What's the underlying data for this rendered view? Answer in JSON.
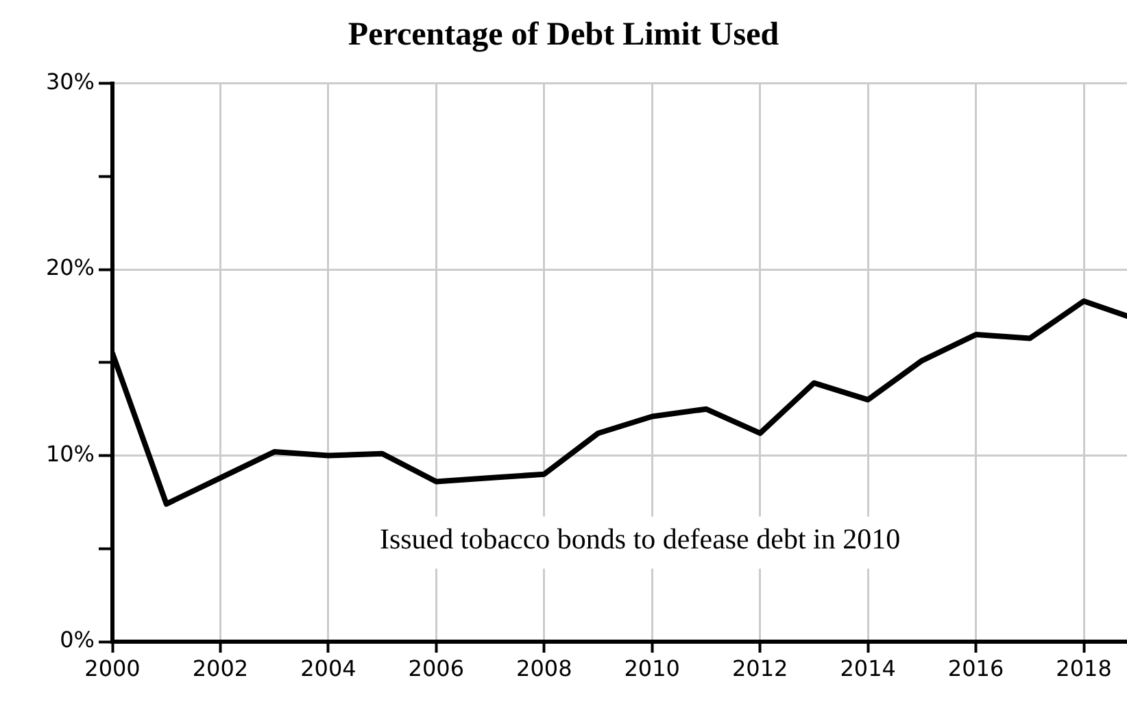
{
  "chart_data": {
    "type": "line",
    "title": "Percentage of Debt Limit Used",
    "x": [
      2000,
      2001,
      2002,
      2003,
      2004,
      2005,
      2006,
      2007,
      2008,
      2009,
      2010,
      2011,
      2012,
      2013,
      2014,
      2015,
      2016,
      2017,
      2018,
      2018.8
    ],
    "series": [
      {
        "color": "#000000",
        "values": [
          15.5,
          7.4,
          8.8,
          10.2,
          10.0,
          10.1,
          8.6,
          8.8,
          9.0,
          11.2,
          12.1,
          12.5,
          11.2,
          13.9,
          13.0,
          15.1,
          16.5,
          16.3,
          18.3,
          17.5
        ]
      }
    ],
    "xlim": [
      2000,
      2018.8
    ],
    "xticks": [
      2000,
      2002,
      2004,
      2006,
      2008,
      2010,
      2012,
      2014,
      2016,
      2018
    ],
    "ylim": [
      0,
      30
    ],
    "yticks": [
      {
        "value": 0,
        "label": "0%"
      },
      {
        "value": 5,
        "label": null
      },
      {
        "value": 10,
        "label": "10%"
      },
      {
        "value": 15,
        "label": null
      },
      {
        "value": 20,
        "label": "20%"
      },
      {
        "value": 25,
        "label": null
      },
      {
        "value": 30,
        "label": "30%"
      }
    ],
    "grid": true,
    "legend": false,
    "marker": "none",
    "line_style": "solid",
    "annotations": [
      "Issued tobacco bonds to defease debt in 2010"
    ]
  }
}
